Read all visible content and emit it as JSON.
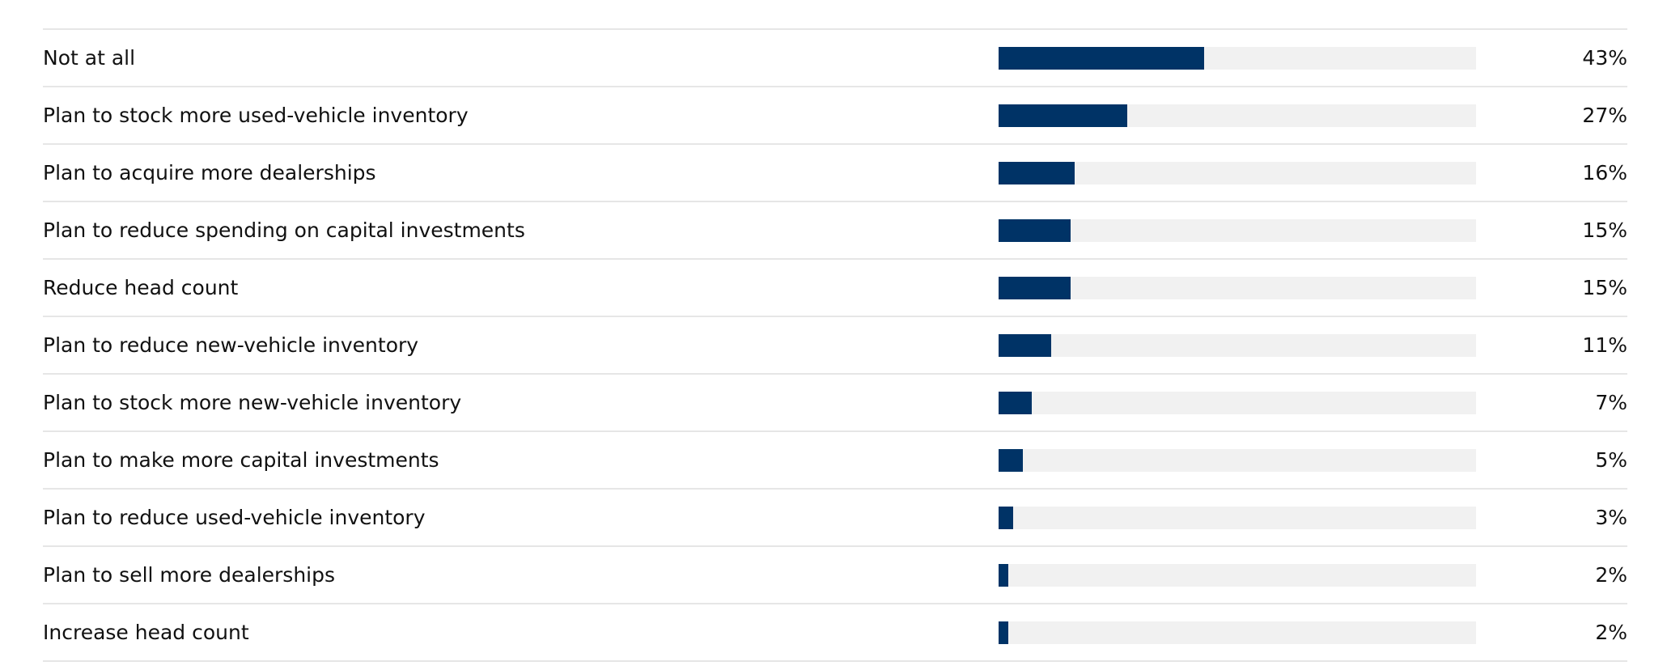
{
  "colors": {
    "bar": "#003366",
    "track": "#f1f1f1",
    "divider": "#e6e6e6",
    "text": "#111111"
  },
  "chart_data": {
    "type": "bar",
    "orientation": "horizontal",
    "categories": [
      "Not at all",
      "Plan to stock more used-vehicle inventory",
      "Plan to acquire more dealerships",
      "Plan to reduce spending on capital investments",
      "Reduce head count",
      "Plan to reduce new-vehicle inventory",
      "Plan to stock more new-vehicle inventory",
      "Plan to make more capital investments",
      "Plan to reduce used-vehicle inventory",
      "Plan to sell more dealerships",
      "Increase head count"
    ],
    "values": [
      43,
      27,
      16,
      15,
      15,
      11,
      7,
      5,
      3,
      2,
      2
    ],
    "value_labels": [
      "43%",
      "27%",
      "16%",
      "15%",
      "15%",
      "11%",
      "7%",
      "5%",
      "3%",
      "2%",
      "2%"
    ],
    "unit": "%",
    "xlim": [
      0,
      100
    ],
    "title": "",
    "xlabel": "",
    "ylabel": "",
    "grid": false,
    "legend": "none"
  }
}
